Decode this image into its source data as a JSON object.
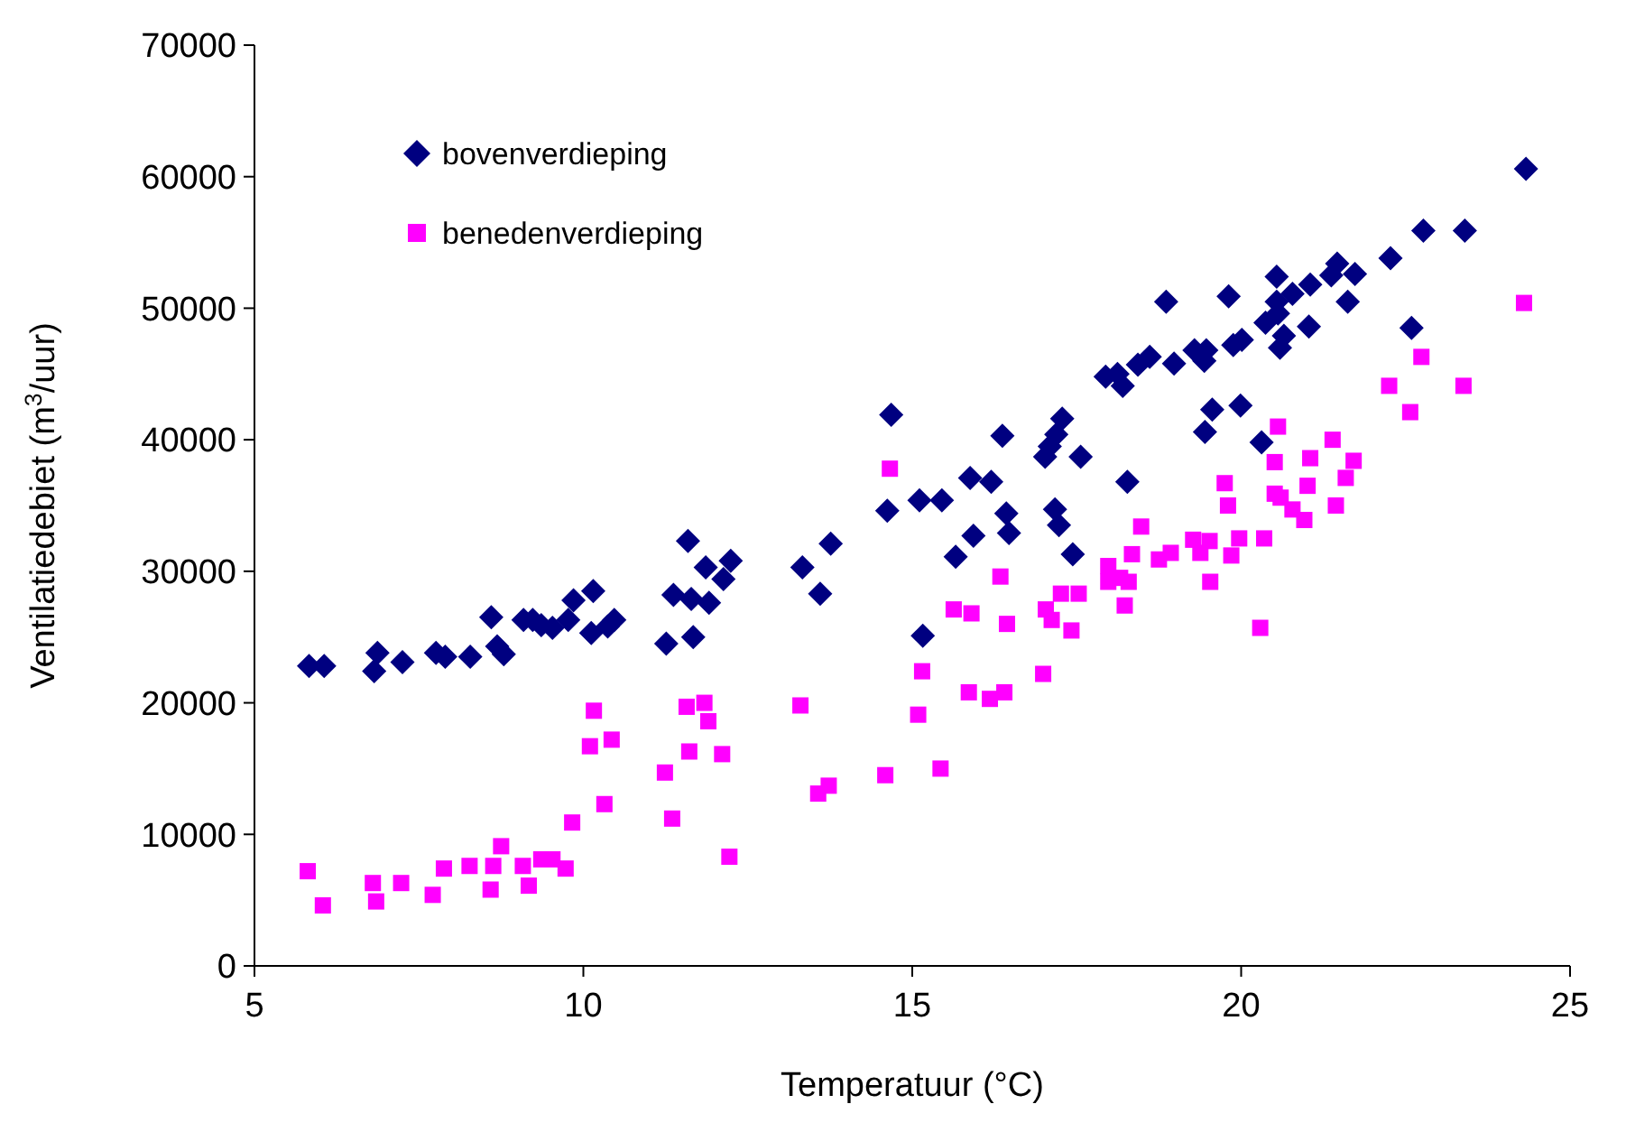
{
  "chart_data": {
    "type": "scatter",
    "xlabel": "Temperatuur (°C)",
    "ylabel": "Ventilatiedebiet (m$^{3}$/uur)",
    "xlim": [
      5,
      25
    ],
    "xticks": [
      5,
      10,
      15,
      20,
      25
    ],
    "ylim": [
      0,
      70000
    ],
    "yticks": [
      0,
      10000,
      20000,
      30000,
      40000,
      50000,
      60000,
      70000
    ],
    "grid": false,
    "legend": "top left",
    "series": [
      {
        "name": "bovenverdieping",
        "color": "#000080",
        "marker": "diamond",
        "x": [
          5.83,
          6.06,
          6.82,
          6.87,
          7.25,
          7.76,
          7.9,
          8.28,
          8.6,
          8.69,
          8.79,
          9.09,
          9.23,
          9.36,
          9.53,
          9.77,
          9.85,
          10.15,
          10.12,
          10.37,
          10.47,
          11.26,
          11.37,
          11.59,
          11.64,
          11.67,
          11.86,
          12.24,
          12.13,
          11.91,
          13.33,
          13.76,
          13.6,
          14.62,
          14.68,
          15.11,
          15.45,
          15.88,
          16.2,
          16.37,
          16.43,
          16.47,
          15.93,
          15.66,
          15.16,
          17.17,
          17.23,
          17.44,
          17.02,
          17.09,
          17.19,
          17.28,
          17.56,
          18.27,
          24.33,
          22.77,
          23.4,
          22.27,
          21.46,
          21.73,
          21.37,
          20.54,
          21.05,
          20.78,
          19.81,
          18.86,
          21.62,
          20.54,
          20.56,
          20.37,
          21.03,
          20.65,
          20.59,
          20.01,
          19.88,
          19.47,
          19.29,
          19.44,
          18.98,
          18.61,
          18.43,
          18.2,
          17.94,
          18.12,
          22.59,
          19.56,
          19.99,
          19.45,
          20.31
        ],
        "values": [
          22800,
          22800,
          22400,
          23800,
          23100,
          23800,
          23500,
          23500,
          26500,
          24300,
          23700,
          26300,
          26300,
          25900,
          25700,
          26300,
          27800,
          28500,
          25300,
          25800,
          26300,
          24500,
          28200,
          32300,
          27900,
          25000,
          30300,
          30800,
          29400,
          27600,
          30300,
          32100,
          28300,
          34600,
          41900,
          35400,
          35400,
          37100,
          36800,
          40300,
          34400,
          32900,
          32700,
          31100,
          25100,
          34700,
          33500,
          31300,
          38700,
          39500,
          40400,
          41600,
          38700,
          36800,
          60600,
          55900,
          55900,
          53800,
          53400,
          52600,
          52500,
          52400,
          51800,
          51100,
          50900,
          50500,
          50500,
          50500,
          49600,
          48900,
          48600,
          47900,
          47000,
          47600,
          47200,
          46800,
          46800,
          46000,
          45800,
          46300,
          45700,
          44100,
          44800,
          45000,
          48500,
          42300,
          42600,
          40600,
          39800
        ]
      },
      {
        "name": "benedenverdieping",
        "color": "#ff00ff",
        "marker": "square",
        "x": [
          5.81,
          6.04,
          6.8,
          6.85,
          7.23,
          7.71,
          7.88,
          8.27,
          8.59,
          8.63,
          8.75,
          9.08,
          9.17,
          9.36,
          9.53,
          9.73,
          9.83,
          10.1,
          10.16,
          10.43,
          10.32,
          11.24,
          11.35,
          11.57,
          11.61,
          14.66,
          16.34,
          15.63,
          15.9,
          16.44,
          15.15,
          15.09,
          15.86,
          16.18,
          16.4,
          16.99,
          14.59,
          15.43,
          13.57,
          13.73,
          13.3,
          11.84,
          11.9,
          12.11,
          12.22,
          17.03,
          17.12,
          17.42,
          17.26,
          17.53,
          17.98,
          18.16,
          18.34,
          18.23,
          18.48,
          24.3,
          22.74,
          22.25,
          23.38,
          22.57,
          20.56,
          21.39,
          20.51,
          21.05,
          21.71,
          21.59,
          21.01,
          19.75,
          19.8,
          20.51,
          20.6,
          20.78,
          20.96,
          21.44,
          19.27,
          19.52,
          19.97,
          20.35,
          19.85,
          19.38,
          18.93,
          18.75,
          18.29,
          17.98,
          19.53,
          20.29
        ],
        "values": [
          7200,
          4600,
          6300,
          4900,
          6300,
          5400,
          7400,
          7600,
          5800,
          7600,
          9100,
          7600,
          6100,
          8100,
          8100,
          7400,
          10900,
          16700,
          19400,
          17200,
          12300,
          14700,
          11200,
          19700,
          16300,
          37800,
          29600,
          27100,
          26800,
          26000,
          22400,
          19100,
          20800,
          20300,
          20800,
          22200,
          14500,
          15000,
          13100,
          13700,
          19800,
          20000,
          18600,
          16100,
          8300,
          27100,
          26300,
          25500,
          28300,
          28300,
          30400,
          29500,
          31300,
          27400,
          33400,
          50400,
          46300,
          44100,
          44100,
          42100,
          41000,
          40000,
          38300,
          38600,
          38400,
          37100,
          36500,
          36700,
          35000,
          35900,
          35600,
          34700,
          33900,
          35000,
          32400,
          32300,
          32500,
          32500,
          31200,
          31400,
          31400,
          30900,
          29200,
          29200,
          29200,
          25700
        ]
      }
    ]
  }
}
